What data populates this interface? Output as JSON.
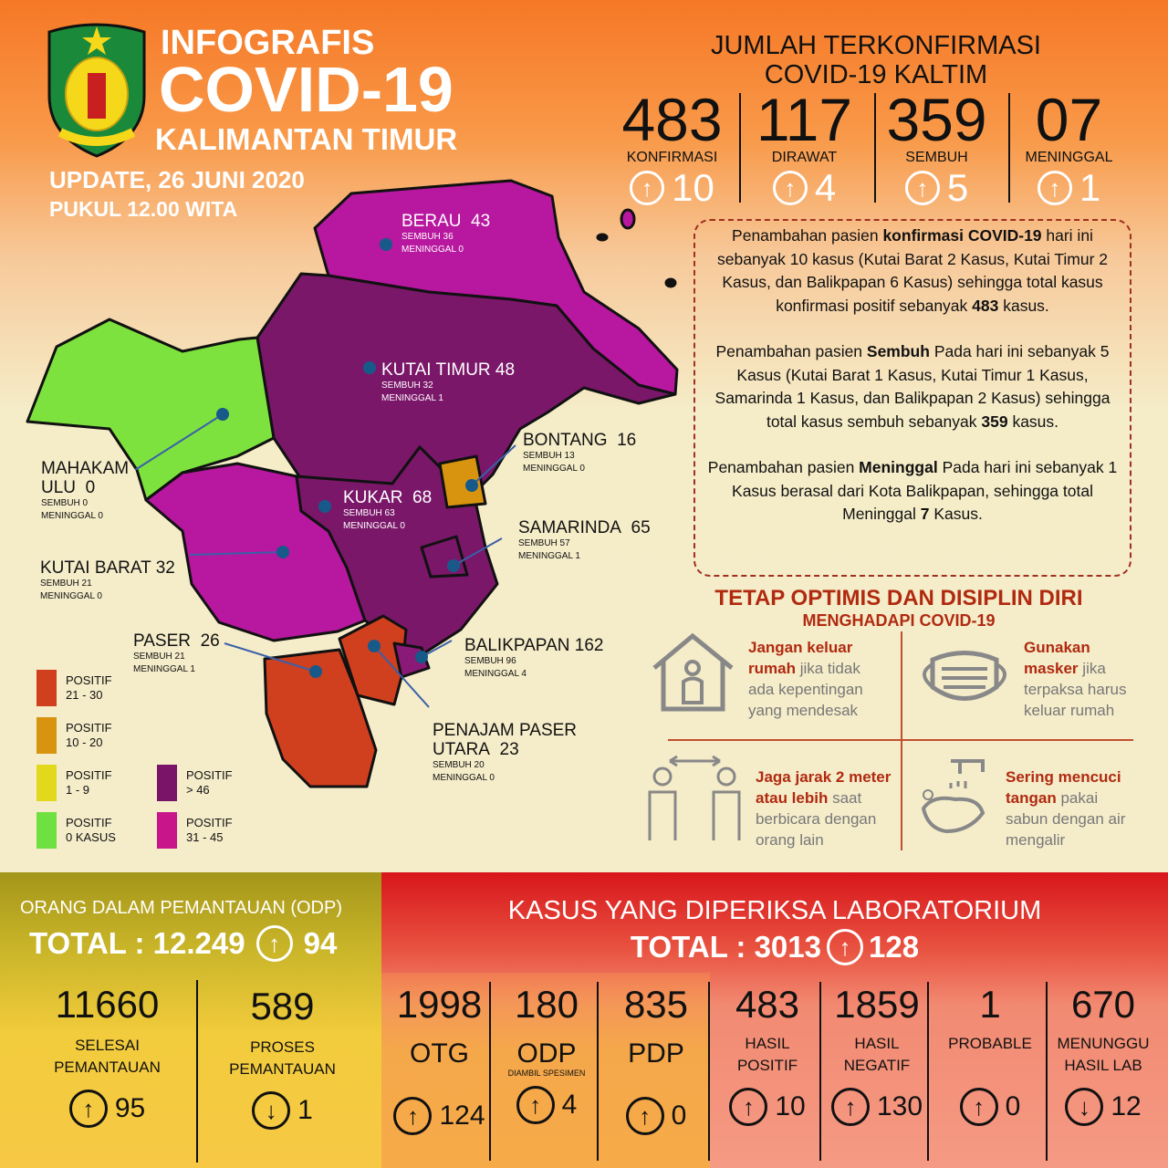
{
  "header": {
    "title1": "INFOGRAFIS",
    "title2": "COVID-19",
    "title3": "KALIMANTAN TIMUR",
    "update": "UPDATE, 26 JUNI 2020",
    "time": "PUKUL 12.00 WITA",
    "logo_text": "KALIMANTAN TIMUR ruhui rahayu"
  },
  "summary": {
    "title1": "JUMLAH TERKONFIRMASI",
    "title2": "COVID-19 KALTIM",
    "stats": [
      {
        "value": "483",
        "label": "KONFIRMASI",
        "delta": "10",
        "dir": "up"
      },
      {
        "value": "117",
        "label": "DIRAWAT",
        "delta": "4",
        "dir": "up"
      },
      {
        "value": "359",
        "label": "SEMBUH",
        "delta": "5",
        "dir": "up"
      },
      {
        "value": "07",
        "label": "MENINGGAL",
        "delta": "1",
        "dir": "up"
      }
    ]
  },
  "notes": {
    "p1": [
      "Penambahan pasien ",
      "konfirmasi COVID-19",
      " hari ini sebanyak 10 kasus (Kutai Barat 2 Kasus, Kutai Timur 2 Kasus, dan Balikpapan 6 Kasus) sehingga total kasus konfirmasi positif sebanyak ",
      "483",
      " kasus."
    ],
    "p2": [
      "Penambahan pasien ",
      "Sembuh",
      " Pada hari ini sebanyak 5 Kasus (Kutai Barat 1 Kasus, Kutai Timur 1 Kasus, Samarinda 1 Kasus, dan Balikpapan 2 Kasus) sehingga total kasus sembuh sebanyak ",
      "359",
      " kasus."
    ],
    "p3": [
      "Penambahan pasien ",
      "Meninggal",
      " Pada hari ini sebanyak 1 Kasus berasal dari Kota Balikpapan, sehingga total Meninggal ",
      "7",
      " Kasus."
    ]
  },
  "tips": {
    "title": "TETAP OPTIMIS DAN DISIPLIN DIRI",
    "subtitle": "MENGHADAPI COVID-19",
    "items": [
      {
        "bold": "Jangan keluar rumah",
        "rest": " jika tidak ada kepentingan yang mendesak",
        "icon": "house-person-icon"
      },
      {
        "bold": "Gunakan masker",
        "rest": " jika terpaksa harus keluar rumah",
        "icon": "mask-icon"
      },
      {
        "bold": "Jaga jarak 2 meter atau lebih",
        "rest": " saat berbicara dengan orang lain",
        "icon": "distance-icon"
      },
      {
        "bold": "Sering mencuci tangan",
        "rest": " pakai sabun dengan air mengalir",
        "icon": "handwash-icon"
      }
    ]
  },
  "regions": [
    {
      "name": "BERAU",
      "total": "43",
      "sembuh": "SEMBUH 36",
      "meninggal": "MENINGGAL 0"
    },
    {
      "name": "KUTAI TIMUR",
      "total": "48",
      "sembuh": "SEMBUH 32",
      "meninggal": "MENINGGAL 1"
    },
    {
      "name": "BONTANG",
      "total": "16",
      "sembuh": "SEMBUH 13",
      "meninggal": "MENINGGAL 0"
    },
    {
      "name": "MAHAKAM ULU",
      "total": "0",
      "sembuh": "SEMBUH 0",
      "meninggal": "MENINGGAL 0"
    },
    {
      "name": "KUKAR",
      "total": "68",
      "sembuh": "SEMBUH 63",
      "meninggal": "MENINGGAL 0"
    },
    {
      "name": "SAMARINDA",
      "total": "65",
      "sembuh": "SEMBUH 57",
      "meninggal": "MENINGGAL 1"
    },
    {
      "name": "KUTAI BARAT",
      "total": "32",
      "sembuh": "SEMBUH 21",
      "meninggal": "MENINGGAL 0"
    },
    {
      "name": "PASER",
      "total": "26",
      "sembuh": "SEMBUH 21",
      "meninggal": "MENINGGAL 1"
    },
    {
      "name": "BALIKPAPAN",
      "total": "162",
      "sembuh": "SEMBUH 96",
      "meninggal": "MENINGGAL 4"
    },
    {
      "name": "PENAJAM PASER UTARA",
      "total": "23",
      "sembuh": "SEMBUH 20",
      "meninggal": "MENINGGAL 0"
    }
  ],
  "legend": [
    {
      "l1": "POSITIF",
      "l2": "21 - 30",
      "color": "#d0401f"
    },
    {
      "l1": "POSITIF",
      "l2": "10 - 20",
      "color": "#d8940f"
    },
    {
      "l1": "POSITIF",
      "l2": "1 - 9",
      "color": "#e2d81c"
    },
    {
      "l1": "POSITIF",
      "l2": "0 KASUS",
      "color": "#6ee040"
    },
    {
      "l1": "POSITIF",
      "l2": "> 46",
      "color": "#7a1468"
    },
    {
      "l1": "POSITIF",
      "l2": "31 - 45",
      "color": "#c8168a"
    }
  ],
  "odp": {
    "title": "ORANG DALAM PEMANTAUAN (ODP)",
    "total": "TOTAL : 12.249",
    "delta": "94",
    "items": [
      {
        "value": "11660",
        "l1": "SELESAI",
        "l2": "PEMANTAUAN",
        "delta": "95",
        "dir": "up"
      },
      {
        "value": "589",
        "l1": "PROSES",
        "l2": "PEMANTAUAN",
        "delta": "1",
        "dir": "down"
      }
    ]
  },
  "lab": {
    "title": "KASUS YANG DIPERIKSA LABORATORIUM",
    "total": "TOTAL : 3013",
    "delta": "128",
    "items": [
      {
        "value": "1998",
        "l1": "OTG",
        "l2": "",
        "delta": "124",
        "dir": "up"
      },
      {
        "value": "180",
        "l1": "ODP",
        "l2": "DIAMBIL SPESIMEN",
        "delta": "4",
        "dir": "up"
      },
      {
        "value": "835",
        "l1": "PDP",
        "l2": "",
        "delta": "0",
        "dir": "up"
      },
      {
        "value": "483",
        "l1": "HASIL",
        "l2": "POSITIF",
        "delta": "10",
        "dir": "up"
      },
      {
        "value": "1859",
        "l1": "HASIL",
        "l2": "NEGATIF",
        "delta": "130",
        "dir": "up"
      },
      {
        "value": "1",
        "l1": "PROBABLE",
        "l2": "",
        "delta": "0",
        "dir": "up"
      },
      {
        "value": "670",
        "l1": "MENUNGGU",
        "l2": "HASIL LAB",
        "delta": "12",
        "dir": "down"
      }
    ]
  }
}
